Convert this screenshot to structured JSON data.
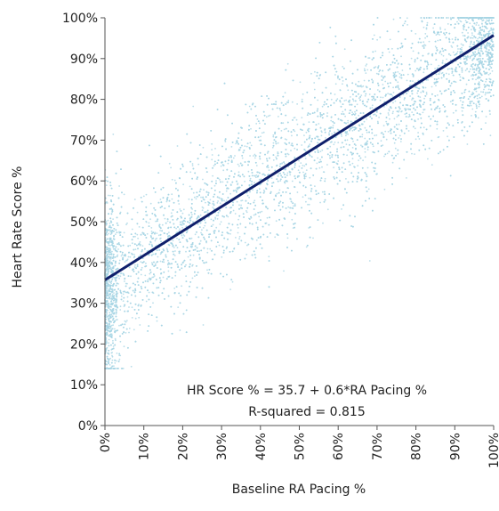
{
  "chart_data": {
    "type": "scatter",
    "xlabel": "Baseline RA Pacing %",
    "ylabel": "Heart Rate Score %",
    "xlim": [
      0,
      100
    ],
    "ylim": [
      0,
      100
    ],
    "x_ticks": [
      0,
      10,
      20,
      30,
      40,
      50,
      60,
      70,
      80,
      90,
      100
    ],
    "y_ticks": [
      0,
      10,
      20,
      30,
      40,
      50,
      60,
      70,
      80,
      90,
      100
    ],
    "x_tick_labels": [
      "0%",
      "10%",
      "20%",
      "30%",
      "40%",
      "50%",
      "60%",
      "70%",
      "80%",
      "90%",
      "100%"
    ],
    "y_tick_labels": [
      "0%",
      "10%",
      "20%",
      "30%",
      "40%",
      "50%",
      "60%",
      "70%",
      "80%",
      "90%",
      "100%"
    ],
    "grid": false,
    "regression": {
      "intercept": 35.7,
      "slope": 0.6
    },
    "annotation": {
      "equation": "HR Score % = 35.7 + 0.6*RA Pacing %",
      "r_squared": "R-squared = 0.815"
    },
    "colors": {
      "points": "#a9d6e5",
      "line": "#0f1f6b",
      "axis": "#555555"
    },
    "points_sample": {
      "x": [
        0,
        0,
        0,
        1,
        2,
        2,
        3,
        5,
        5,
        8,
        10,
        10,
        15,
        15,
        20,
        20,
        25,
        30,
        30,
        35,
        40,
        40,
        45,
        50,
        50,
        55,
        60,
        60,
        65,
        70,
        70,
        75,
        80,
        80,
        85,
        90,
        90,
        95,
        100,
        100,
        100
      ],
      "y": [
        20,
        38,
        62,
        28,
        48,
        25,
        45,
        22,
        52,
        32,
        26,
        48,
        34,
        55,
        40,
        58,
        48,
        42,
        65,
        58,
        55,
        70,
        62,
        58,
        74,
        68,
        65,
        80,
        72,
        70,
        86,
        80,
        76,
        92,
        88,
        84,
        97,
        92,
        86,
        96,
        100
      ]
    }
  }
}
